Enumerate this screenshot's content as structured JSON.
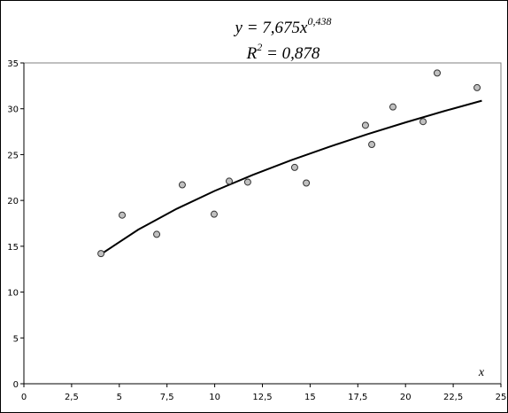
{
  "chart_data": {
    "type": "scatter",
    "title": {
      "line1": {
        "base": "y = 7,675x",
        "exponent": "0,438"
      },
      "line2": {
        "base": "R",
        "exponent": "2",
        "rest": " = 0,878"
      }
    },
    "x_label": "x",
    "x": [
      4.04,
      5.15,
      6.96,
      8.3,
      9.97,
      10.76,
      11.73,
      14.19,
      14.8,
      17.9,
      18.23,
      19.34,
      20.92,
      21.66,
      23.75
    ],
    "values": [
      14.2,
      18.4,
      16.3,
      21.7,
      18.5,
      22.1,
      22.0,
      23.6,
      21.9,
      28.2,
      26.1,
      30.2,
      28.6,
      33.9,
      32.3
    ],
    "color": "#c0c0c0",
    "trendline": {
      "x": [
        4,
        6,
        8,
        10,
        12,
        14,
        16,
        18,
        20,
        22,
        24
      ],
      "values": [
        14.08,
        16.82,
        19.08,
        21.04,
        22.79,
        24.38,
        25.85,
        27.22,
        28.51,
        29.73,
        30.88
      ],
      "color": "#000000"
    },
    "xlim": [
      0,
      25
    ],
    "xticks": [
      0,
      {
        "value": 2.5,
        "label": "2,5"
      },
      5,
      {
        "value": 7.5,
        "label": "7,5"
      },
      10,
      {
        "value": 12.5,
        "label": "12,5"
      },
      15,
      {
        "value": 17.5,
        "label": "17,5"
      },
      20,
      {
        "value": 22.5,
        "label": "22,5"
      },
      25
    ],
    "ylim": [
      0,
      35
    ],
    "yticks": [
      0,
      5,
      10,
      15,
      20,
      25,
      30,
      35
    ],
    "grid": false
  }
}
